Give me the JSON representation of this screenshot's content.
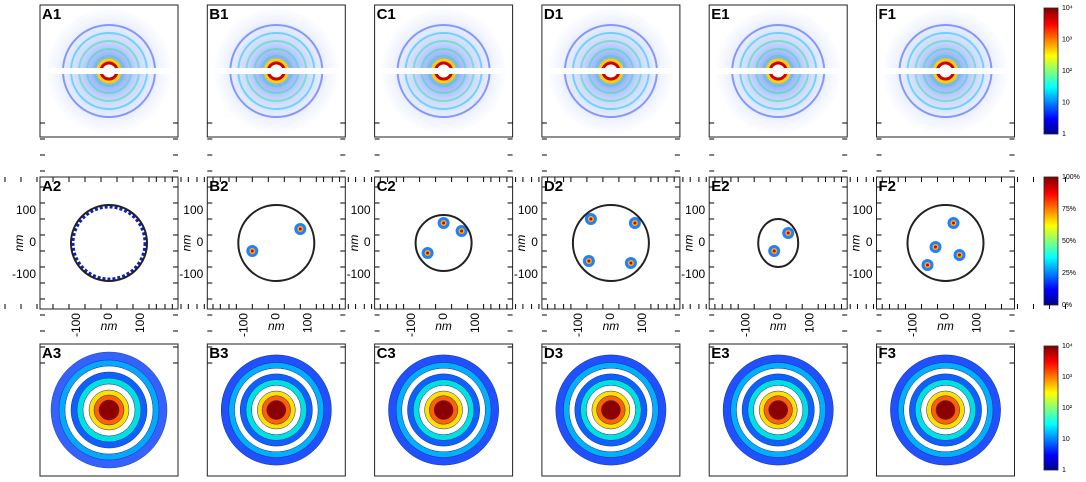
{
  "rows": [
    {
      "panels": [
        "A1",
        "B1",
        "C1",
        "D1",
        "E1",
        "F1"
      ]
    },
    {
      "panels": [
        "A2",
        "B2",
        "C2",
        "D2",
        "E2",
        "F2"
      ]
    },
    {
      "panels": [
        "A3",
        "B3",
        "C3",
        "D3",
        "E3",
        "F3"
      ]
    }
  ],
  "axis": {
    "ticks": [
      "-100",
      "0",
      "100"
    ],
    "label": "nm"
  },
  "colorbars": [
    {
      "labels": [
        "10⁴",
        "10³",
        "10²",
        "10",
        "1"
      ]
    },
    {
      "labels": [
        "100%",
        "75%",
        "50%",
        "25%",
        "0%"
      ]
    },
    {
      "labels": [
        "10⁴",
        "10³",
        "10²",
        "10",
        "1"
      ]
    }
  ]
}
